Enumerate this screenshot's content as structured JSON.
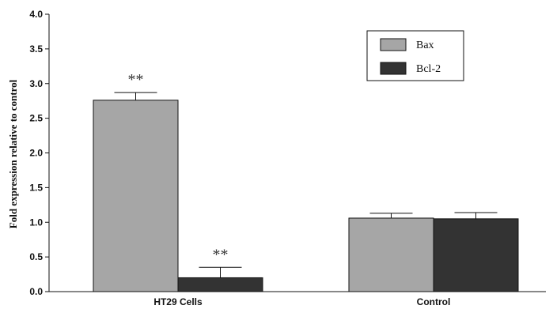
{
  "chart_data": {
    "type": "bar",
    "title": "",
    "xlabel": "",
    "ylabel": "Fold expression relative to control",
    "categories": [
      "HT29 Cells",
      "Control"
    ],
    "ylim": [
      0,
      4.0
    ],
    "yticks": [
      "0.0",
      "0.5",
      "1.0",
      "1.5",
      "2.0",
      "2.5",
      "3.0",
      "3.5",
      "4.0"
    ],
    "grid": false,
    "legend_position": "top-right",
    "series": [
      {
        "name": "Bax",
        "color": "#a6a6a6",
        "values": [
          2.76,
          1.06
        ],
        "errors": [
          0.11,
          0.07
        ],
        "annotations": [
          "**",
          ""
        ]
      },
      {
        "name": "Bcl-2",
        "color": "#333333",
        "values": [
          0.2,
          1.05
        ],
        "errors": [
          0.15,
          0.09
        ],
        "annotations": [
          "**",
          ""
        ]
      }
    ]
  }
}
